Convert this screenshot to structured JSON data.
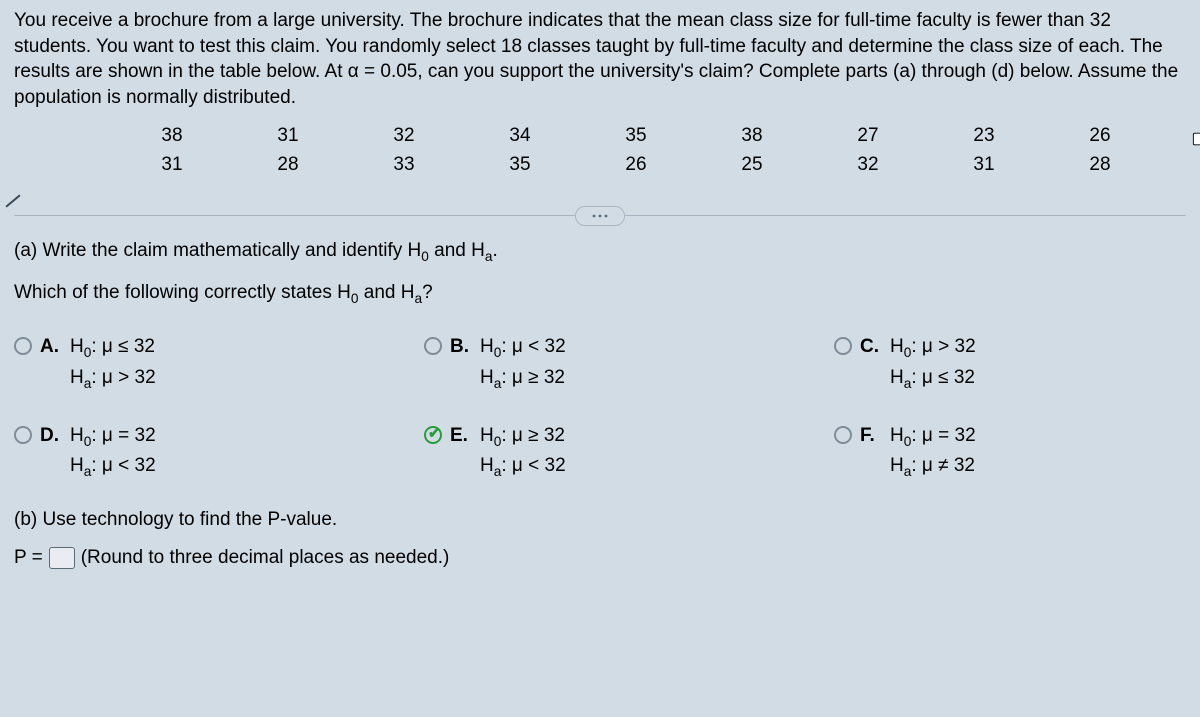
{
  "colors": {
    "background": "#d1dce5",
    "text": "#000000",
    "divider": "#aab6c1",
    "radio_border": "#7f8c97",
    "checked": "#2a9c3a",
    "input_border": "#5a6b78",
    "input_bg": "#e9edf1"
  },
  "problem": {
    "text": "You receive a brochure from a large university. The brochure indicates that the mean class size for full-time faculty is fewer than 32 students. You want to test this claim. You randomly select 18 classes taught by full-time faculty and determine the class size of each. The results are shown in the table below. At α = 0.05, can you support the university's claim? Complete parts (a) through (d) below. Assume the population is normally distributed."
  },
  "data_table": {
    "rows": [
      [
        "38",
        "31",
        "32",
        "34",
        "35",
        "38",
        "27",
        "23",
        "26"
      ],
      [
        "31",
        "28",
        "33",
        "35",
        "26",
        "25",
        "32",
        "31",
        "28"
      ]
    ]
  },
  "part_a": {
    "prompt_html": "(a) Write the claim mathematically and identify H<span class=\"sub0\">0</span> and H<span class=\"sub0\">a</span>.",
    "subq_html": "Which of the following correctly states H<span class=\"sub0\">0</span> and H<span class=\"sub0\">a</span>?"
  },
  "options": {
    "a": {
      "letter": "A.",
      "h0": "H<span class=\"sub0\">0</span>: μ ≤ 32",
      "ha": "H<span class=\"sub0\">a</span>: μ > 32",
      "checked": false
    },
    "b": {
      "letter": "B.",
      "h0": "H<span class=\"sub0\">0</span>: μ < 32",
      "ha": "H<span class=\"sub0\">a</span>: μ ≥ 32",
      "checked": false
    },
    "c": {
      "letter": "C.",
      "h0": "H<span class=\"sub0\">0</span>: μ > 32",
      "ha": "H<span class=\"sub0\">a</span>: μ ≤ 32",
      "checked": false
    },
    "d": {
      "letter": "D.",
      "h0": "H<span class=\"sub0\">0</span>: μ = 32",
      "ha": "H<span class=\"sub0\">a</span>: μ < 32",
      "checked": false
    },
    "e": {
      "letter": "E.",
      "h0": "H<span class=\"sub0\">0</span>: μ ≥ 32",
      "ha": "H<span class=\"sub0\">a</span>: μ < 32",
      "checked": true
    },
    "f": {
      "letter": "F.",
      "h0": "H<span class=\"sub0\">0</span>: μ = 32",
      "ha": "H<span class=\"sub0\">a</span>: μ ≠ 32",
      "checked": false
    }
  },
  "part_b": {
    "prompt": "(b) Use technology to find the P-value.",
    "p_prefix": "P =",
    "p_suffix": "(Round to three decimal places as needed.)"
  }
}
